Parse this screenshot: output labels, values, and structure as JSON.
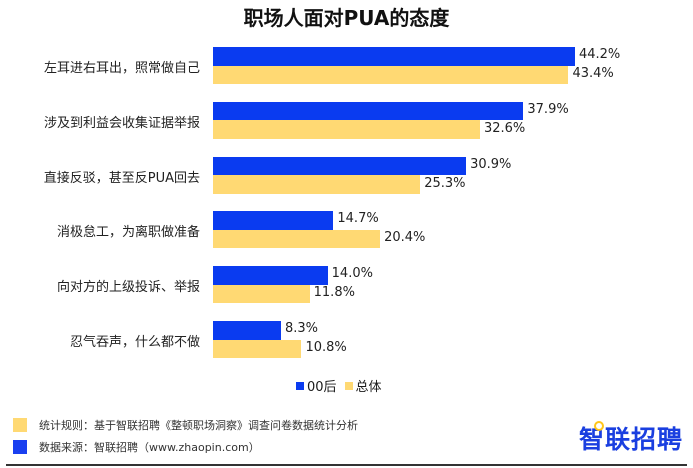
{
  "chart_data": {
    "type": "bar",
    "orientation": "horizontal",
    "title": "职场人面对PUA的态度",
    "xlabel": "",
    "ylabel": "",
    "categories": [
      "左耳进右耳出，照常做自己",
      "涉及到利益会收集证据举报",
      "直接反驳，甚至反PUA回去",
      "消极怠工，为离职做准备",
      "向对方的上级投诉、举报",
      "忍气吞声，什么都不做"
    ],
    "series": [
      {
        "name": "00后",
        "color": "#0a3bf0",
        "values": [
          44.2,
          37.9,
          30.9,
          14.7,
          14.0,
          8.3
        ]
      },
      {
        "name": "总体",
        "color": "#ffd973",
        "values": [
          43.4,
          32.6,
          25.3,
          20.4,
          11.8,
          10.8
        ]
      }
    ],
    "value_labels": [
      [
        "44.2%",
        "43.4%"
      ],
      [
        "37.9%",
        "32.6%"
      ],
      [
        "30.9%",
        "25.3%"
      ],
      [
        "14.7%",
        "20.4%"
      ],
      [
        "14.0%",
        "11.8%"
      ],
      [
        "8.3%",
        "10.8%"
      ]
    ],
    "unit": "%",
    "grid": false,
    "legend_position": "bottom"
  },
  "legend": {
    "items": [
      {
        "label": "00后",
        "color": "#0a3bf0"
      },
      {
        "label": "总体",
        "color": "#ffd973"
      }
    ]
  },
  "footer": {
    "notes": [
      {
        "label": "统计规则：基于智联招聘《整顿职场洞察》调查问卷数据统计分析",
        "color": "#ffd973"
      },
      {
        "label": "数据来源：智联招聘（www.zhaopin.com）",
        "color": "#1a3ff0"
      }
    ],
    "logo": "智联招聘"
  }
}
